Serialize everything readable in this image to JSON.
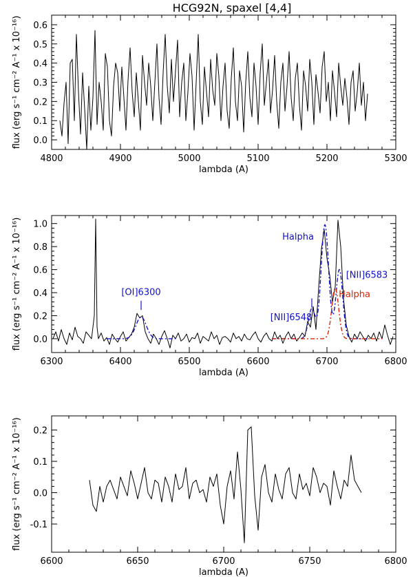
{
  "chart_data": [
    {
      "type": "line",
      "title": "HCG92N, spaxel [4,4]",
      "xlabel": "lambda (A)",
      "ylabel": "flux (erg s⁻¹ cm⁻² A⁻¹ x 10⁻¹⁶)",
      "xlim": [
        4800,
        5300
      ],
      "ylim": [
        -0.05,
        0.65
      ],
      "xticks": [
        4800,
        4900,
        5000,
        5100,
        5200,
        5300
      ],
      "xtick_labels": [
        "4800",
        "4900",
        "5000",
        "5100",
        "5200",
        "5300"
      ],
      "yticks": [
        0.0,
        0.1,
        0.2,
        0.3,
        0.4,
        0.5,
        0.6
      ],
      "ytick_labels": [
        "0.0",
        "0.1",
        "0.2",
        "0.3",
        "0.4",
        "0.5",
        "0.6"
      ],
      "series": [
        {
          "name": "spectrum",
          "color": "#000000",
          "x": [
            4812,
            4815,
            4818,
            4821,
            4824,
            4827,
            4830,
            4833,
            4836,
            4839,
            4842,
            4845,
            4848,
            4851,
            4854,
            4857,
            4860,
            4863,
            4866,
            4869,
            4872,
            4875,
            4878,
            4881,
            4884,
            4887,
            4890,
            4893,
            4896,
            4899,
            4902,
            4905,
            4908,
            4911,
            4914,
            4917,
            4920,
            4923,
            4926,
            4929,
            4932,
            4935,
            4938,
            4941,
            4944,
            4947,
            4950,
            4953,
            4956,
            4959,
            4962,
            4965,
            4968,
            4971,
            4974,
            4977,
            4980,
            4983,
            4986,
            4989,
            4992,
            4995,
            4998,
            5001,
            5004,
            5007,
            5010,
            5013,
            5016,
            5019,
            5022,
            5025,
            5028,
            5031,
            5034,
            5037,
            5040,
            5043,
            5046,
            5049,
            5052,
            5055,
            5058,
            5061,
            5064,
            5067,
            5070,
            5073,
            5076,
            5079,
            5082,
            5085,
            5088,
            5091,
            5094,
            5097,
            5100,
            5103,
            5106,
            5109,
            5112,
            5115,
            5118,
            5121,
            5124,
            5127,
            5130,
            5133,
            5136,
            5139,
            5142,
            5145,
            5148,
            5151,
            5154,
            5157,
            5160,
            5163,
            5166,
            5169,
            5172,
            5175,
            5178,
            5181,
            5184,
            5187,
            5190,
            5193,
            5196,
            5199,
            5202,
            5205,
            5208,
            5211,
            5214,
            5217,
            5220,
            5223,
            5226,
            5229,
            5232,
            5235,
            5238,
            5241,
            5244,
            5247,
            5250,
            5253,
            5256,
            5259
          ],
          "y": [
            0.1,
            0.02,
            0.19,
            0.3,
            -0.02,
            0.4,
            0.42,
            0.1,
            0.55,
            0.25,
            0.03,
            0.35,
            0.16,
            -0.05,
            0.28,
            0.05,
            0.22,
            0.57,
            0.08,
            0.3,
            0.2,
            0.05,
            0.45,
            0.38,
            0.1,
            0.02,
            0.28,
            0.4,
            0.35,
            0.15,
            0.38,
            0.22,
            0.05,
            0.31,
            0.48,
            0.25,
            0.12,
            0.35,
            0.2,
            0.05,
            0.44,
            0.3,
            0.18,
            0.4,
            0.28,
            0.1,
            0.3,
            0.5,
            0.22,
            0.08,
            0.35,
            0.55,
            0.28,
            0.14,
            0.42,
            0.2,
            0.36,
            0.52,
            0.12,
            0.3,
            0.4,
            0.1,
            0.25,
            0.45,
            0.33,
            0.05,
            0.3,
            0.55,
            0.2,
            0.08,
            0.38,
            0.25,
            0.12,
            0.42,
            0.26,
            0.18,
            0.45,
            0.33,
            0.1,
            0.28,
            0.4,
            0.15,
            0.06,
            0.32,
            0.48,
            0.2,
            0.1,
            0.36,
            0.28,
            0.04,
            0.3,
            0.46,
            0.22,
            0.12,
            0.4,
            0.28,
            0.08,
            0.35,
            0.5,
            0.18,
            0.3,
            0.42,
            0.14,
            0.26,
            0.44,
            0.2,
            0.06,
            0.3,
            0.4,
            0.15,
            0.28,
            0.46,
            0.22,
            0.1,
            0.32,
            0.4,
            0.18,
            0.05,
            0.36,
            0.28,
            0.15,
            0.42,
            0.3,
            0.08,
            0.34,
            0.25,
            0.14,
            0.38,
            0.46,
            0.2,
            0.3,
            0.1,
            0.36,
            0.25,
            0.12,
            0.4,
            0.28,
            0.18,
            0.32,
            0.22,
            0.08,
            0.3,
            0.36,
            0.15,
            0.25,
            0.4,
            0.18,
            0.3,
            0.1,
            0.24
          ]
        }
      ]
    },
    {
      "type": "line",
      "title": "",
      "xlabel": "lambda (A)",
      "ylabel": "flux (erg s⁻¹ cm⁻² A⁻¹ x 10⁻¹⁶)",
      "xlim": [
        6300,
        6800
      ],
      "ylim": [
        -0.12,
        1.07
      ],
      "xticks": [
        6300,
        6400,
        6500,
        6600,
        6700,
        6800
      ],
      "xtick_labels": [
        "6300",
        "6400",
        "6500",
        "6600",
        "6700",
        "6800"
      ],
      "yticks": [
        0.0,
        0.2,
        0.4,
        0.6,
        0.8,
        1.0
      ],
      "ytick_labels": [
        "0.0",
        "0.2",
        "0.4",
        "0.6",
        "0.8",
        "1.0"
      ],
      "annotations": [
        {
          "text": "[OI]6300",
          "color": "#1010cc",
          "x": 6430,
          "y": 0.38,
          "marker_y": [
            0.25,
            0.33
          ]
        },
        {
          "text": "Halpha",
          "color": "#1010cc",
          "x": 6658,
          "y": 0.86
        },
        {
          "text": "[NII]6583",
          "color": "#1010cc",
          "x": 6758,
          "y": 0.53
        },
        {
          "text": "Halpha",
          "color": "#dd2200",
          "x": 6740,
          "y": 0.36
        },
        {
          "text": "[NII]6548",
          "color": "#1010cc",
          "x": 6648,
          "y": 0.16,
          "marker_y": [
            0.27,
            0.35
          ],
          "marker_x": 6678
        }
      ],
      "series": [
        {
          "name": "spectrum",
          "color": "#000000",
          "x": [
            6302,
            6306,
            6310,
            6314,
            6318,
            6322,
            6326,
            6330,
            6334,
            6338,
            6342,
            6346,
            6350,
            6354,
            6358,
            6362,
            6364,
            6366,
            6368,
            6372,
            6376,
            6380,
            6384,
            6388,
            6392,
            6396,
            6400,
            6404,
            6408,
            6412,
            6416,
            6420,
            6424,
            6428,
            6432,
            6436,
            6440,
            6444,
            6448,
            6452,
            6456,
            6460,
            6464,
            6468,
            6472,
            6476,
            6480,
            6484,
            6488,
            6492,
            6496,
            6500,
            6504,
            6508,
            6512,
            6516,
            6520,
            6524,
            6528,
            6532,
            6536,
            6540,
            6544,
            6548,
            6552,
            6556,
            6560,
            6564,
            6568,
            6572,
            6576,
            6580,
            6584,
            6588,
            6592,
            6596,
            6600,
            6604,
            6608,
            6612,
            6616,
            6620,
            6624,
            6628,
            6632,
            6636,
            6640,
            6644,
            6648,
            6652,
            6656,
            6660,
            6664,
            6668,
            6672,
            6676,
            6680,
            6684,
            6688,
            6692,
            6696,
            6700,
            6704,
            6708,
            6712,
            6716,
            6720,
            6724,
            6728,
            6732,
            6736,
            6740,
            6744,
            6748,
            6752,
            6756,
            6760,
            6764,
            6768,
            6772,
            6776,
            6780,
            6784,
            6788,
            6792,
            6796
          ],
          "y": [
            0.0,
            0.06,
            -0.02,
            0.08,
            0.0,
            -0.05,
            0.05,
            -0.01,
            0.1,
            0.02,
            0.0,
            -0.04,
            0.06,
            0.03,
            0.0,
            0.2,
            1.04,
            0.1,
            0.0,
            0.05,
            -0.02,
            0.01,
            -0.05,
            0.04,
            0.0,
            -0.03,
            0.02,
            0.06,
            -0.02,
            0.01,
            0.04,
            0.1,
            0.22,
            0.18,
            0.2,
            0.06,
            0.0,
            -0.04,
            0.04,
            0.0,
            -0.05,
            0.02,
            0.07,
            0.0,
            -0.08,
            0.03,
            0.0,
            0.05,
            -0.02,
            0.0,
            0.04,
            -0.03,
            0.01,
            0.0,
            0.05,
            -0.04,
            0.02,
            0.0,
            -0.02,
            0.06,
            0.0,
            0.03,
            -0.05,
            0.01,
            0.02,
            0.0,
            -0.03,
            0.05,
            0.0,
            0.02,
            -0.02,
            0.04,
            0.0,
            -0.01,
            0.03,
            0.06,
            0.0,
            -0.03,
            0.02,
            0.05,
            0.0,
            -0.02,
            0.06,
            0.0,
            0.03,
            -0.04,
            0.02,
            0.06,
            0.0,
            0.04,
            -0.02,
            0.01,
            0.05,
            0.02,
            0.15,
            0.1,
            0.28,
            0.08,
            0.45,
            0.78,
            0.95,
            0.7,
            0.55,
            0.32,
            0.45,
            1.03,
            0.8,
            0.35,
            0.12,
            0.02,
            -0.03,
            0.04,
            0.0,
            0.06,
            0.02,
            -0.02,
            0.03,
            0.0,
            0.05,
            -0.02,
            0.06,
            0.0,
            0.12,
            0.03,
            -0.05,
            0.02
          ]
        },
        {
          "name": "[OI]6300 fit",
          "color": "#1010cc",
          "dash": "dash-dot",
          "model": "gaussian",
          "x_range": [
            6380,
            6480
          ],
          "center": 6430,
          "amplitude": 0.19,
          "sigma": 7.5
        },
        {
          "name": "Halpha (blue) fit",
          "color": "#1010cc",
          "dash": "dash-dot",
          "model": "gaussians",
          "x_range": [
            6620,
            6760
          ],
          "components": [
            {
              "center": 6678,
              "amplitude": 0.26,
              "sigma": 5
            },
            {
              "center": 6697,
              "amplitude": 0.99,
              "sigma": 5.5
            },
            {
              "center": 6718,
              "amplitude": 0.6,
              "sigma": 5
            }
          ]
        },
        {
          "name": "Halpha (red) fit",
          "color": "#dd2200",
          "dash": "dash-dot",
          "model": "gaussian",
          "x_range": [
            6620,
            6780
          ],
          "center": 6712,
          "amplitude": 0.44,
          "sigma": 5
        }
      ]
    },
    {
      "type": "line",
      "title": "",
      "xlabel": "lambda (A)",
      "ylabel": "flux (erg s⁻¹ cm⁻² A⁻¹ x 10⁻¹⁶)",
      "xlim": [
        6600,
        6800
      ],
      "ylim": [
        -0.19,
        0.245
      ],
      "xticks": [
        6600,
        6650,
        6700,
        6750,
        6800
      ],
      "xtick_labels": [
        "6600",
        "6650",
        "6700",
        "6750",
        "6800"
      ],
      "yticks": [
        -0.1,
        0.0,
        0.1,
        0.2
      ],
      "ytick_labels": [
        "-0.1",
        "0.0",
        "0.1",
        "0.2"
      ],
      "series": [
        {
          "name": "residual",
          "color": "#000000",
          "x": [
            6622,
            6624,
            6626,
            6628,
            6630,
            6632,
            6634,
            6636,
            6638,
            6640,
            6642,
            6644,
            6646,
            6648,
            6650,
            6652,
            6654,
            6656,
            6658,
            6660,
            6662,
            6664,
            6666,
            6668,
            6670,
            6672,
            6674,
            6676,
            6678,
            6680,
            6682,
            6684,
            6686,
            6688,
            6690,
            6692,
            6694,
            6696,
            6698,
            6700,
            6702,
            6704,
            6706,
            6708,
            6710,
            6712,
            6714,
            6716,
            6718,
            6720,
            6722,
            6724,
            6726,
            6728,
            6730,
            6732,
            6734,
            6736,
            6738,
            6740,
            6742,
            6744,
            6746,
            6748,
            6750,
            6752,
            6754,
            6756,
            6758,
            6760,
            6762,
            6764,
            6766,
            6768,
            6770,
            6772,
            6774,
            6776,
            6778,
            6780
          ],
          "y": [
            0.04,
            -0.04,
            -0.06,
            0.02,
            -0.03,
            0.02,
            0.04,
            0.01,
            -0.02,
            0.05,
            0.02,
            -0.01,
            0.07,
            0.03,
            -0.02,
            0.03,
            0.08,
            0.0,
            -0.02,
            0.04,
            0.03,
            -0.03,
            0.05,
            0.02,
            -0.03,
            0.06,
            0.01,
            0.02,
            0.08,
            -0.02,
            0.03,
            0.04,
            0.0,
            0.01,
            -0.03,
            0.05,
            0.02,
            0.06,
            -0.04,
            -0.1,
            0.02,
            0.07,
            -0.02,
            0.13,
            0.01,
            -0.16,
            0.2,
            0.21,
            -0.01,
            -0.12,
            0.05,
            0.09,
            0.0,
            -0.03,
            0.06,
            0.01,
            -0.02,
            0.06,
            0.08,
            0.0,
            -0.02,
            0.06,
            0.01,
            0.03,
            -0.01,
            0.08,
            0.05,
            0.0,
            0.03,
            0.02,
            -0.04,
            0.07,
            0.02,
            -0.02,
            0.04,
            0.02,
            0.12,
            0.04,
            0.02,
            0.0
          ]
        }
      ]
    }
  ]
}
